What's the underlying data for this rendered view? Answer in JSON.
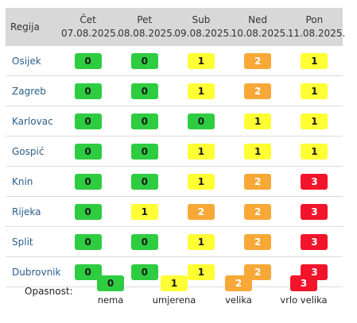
{
  "colors": {
    "nema": "#2ecc40",
    "umjerena": "#ffff33",
    "velika": "#f7a836",
    "vrlo_velika": "#f2142b"
  },
  "header": {
    "region": "Regija",
    "days": [
      {
        "day": "Čet",
        "date": "07.08.2025."
      },
      {
        "day": "Pet",
        "date": "08.08.2025."
      },
      {
        "day": "Sub",
        "date": "09.08.2025."
      },
      {
        "day": "Ned",
        "date": "10.08.2025."
      },
      {
        "day": "Pon",
        "date": "11.08.2025."
      }
    ]
  },
  "rows": [
    {
      "region": "Osijek",
      "levels": [
        "0",
        "0",
        "1",
        "2",
        "1"
      ]
    },
    {
      "region": "Zagreb",
      "levels": [
        "0",
        "0",
        "1",
        "2",
        "1"
      ]
    },
    {
      "region": "Karlovac",
      "levels": [
        "0",
        "0",
        "0",
        "1",
        "1"
      ]
    },
    {
      "region": "Gospić",
      "levels": [
        "0",
        "0",
        "1",
        "1",
        "1"
      ]
    },
    {
      "region": "Knin",
      "levels": [
        "0",
        "0",
        "1",
        "2",
        "3"
      ]
    },
    {
      "region": "Rijeka",
      "levels": [
        "0",
        "1",
        "2",
        "2",
        "3"
      ]
    },
    {
      "region": "Split",
      "levels": [
        "0",
        "0",
        "1",
        "2",
        "3"
      ]
    },
    {
      "region": "Dubrovnik",
      "levels": [
        "0",
        "0",
        "1",
        "2",
        "3"
      ]
    }
  ],
  "legend": {
    "label": "Opasnost:",
    "items": [
      {
        "value": "0",
        "text": "nema"
      },
      {
        "value": "1",
        "text": "umjerena"
      },
      {
        "value": "2",
        "text": "velika"
      },
      {
        "value": "3",
        "text": "vrlo velika"
      }
    ]
  }
}
